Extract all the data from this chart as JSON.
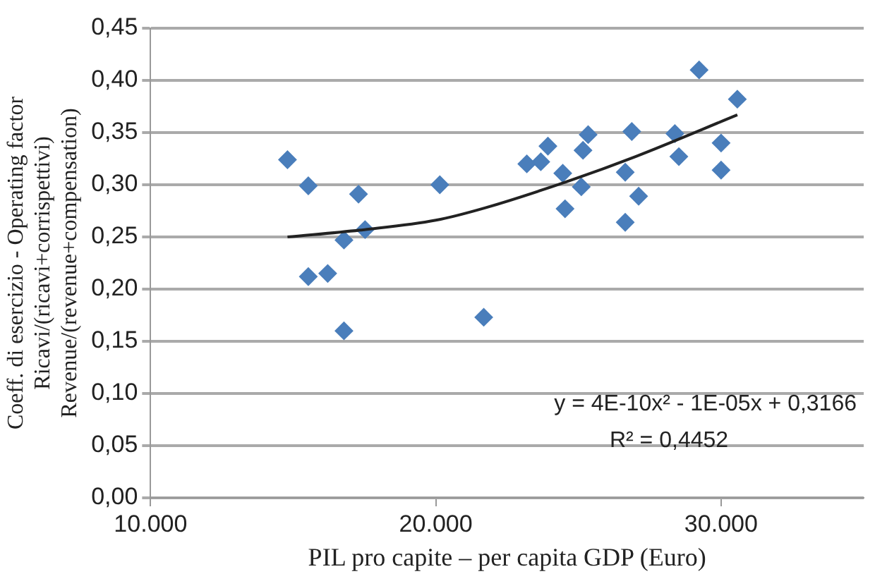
{
  "chart_data": {
    "type": "scatter",
    "xlabel": "PIL pro capite – per capita GDP (Euro)",
    "ylabel": "Coeff. di esercizio - Operating factor\nRicavi/(ricavi+corrispettivi)\nRevenue/(revenue+compensation)",
    "xlim": [
      10000,
      35000
    ],
    "xticks": [
      {
        "value": 10000,
        "label": "10.000"
      },
      {
        "value": 20000,
        "label": "20.000"
      },
      {
        "value": 30000,
        "label": "30.000"
      }
    ],
    "ylim": [
      0,
      0.45
    ],
    "yticks": [
      {
        "value": 0,
        "label": "0,00"
      },
      {
        "value": 0.05,
        "label": "0,05"
      },
      {
        "value": 0.1,
        "label": "0,10"
      },
      {
        "value": 0.15,
        "label": "0,15"
      },
      {
        "value": 0.2,
        "label": "0,20"
      },
      {
        "value": 0.25,
        "label": "0,25"
      },
      {
        "value": 0.3,
        "label": "0,30"
      },
      {
        "value": 0.35,
        "label": "0,35"
      },
      {
        "value": 0.4,
        "label": "0,40"
      },
      {
        "value": 0.45,
        "label": "0,45"
      }
    ],
    "grid": "y",
    "legend": false,
    "marker": "diamond",
    "annotations": [
      "y = 4E-10x² - 1E-05x + 0,3166",
      "R² = 0,4452"
    ],
    "series": [
      {
        "type": "scatter",
        "color": "#4a7ebb",
        "x": [
          14800,
          15530,
          15530,
          16210,
          16780,
          16780,
          17290,
          17520,
          20140,
          21680,
          23190,
          23680,
          23930,
          24450,
          24530,
          25100,
          25160,
          25340,
          26640,
          26640,
          26870,
          27110,
          28380,
          28520,
          29230,
          30000,
          30000,
          30570
        ],
        "values": [
          0.324,
          0.299,
          0.212,
          0.215,
          0.247,
          0.16,
          0.291,
          0.257,
          0.3,
          0.173,
          0.32,
          0.322,
          0.337,
          0.311,
          0.277,
          0.298,
          0.333,
          0.348,
          0.312,
          0.264,
          0.351,
          0.289,
          0.349,
          0.327,
          0.41,
          0.34,
          0.314,
          0.382
        ]
      },
      {
        "type": "line",
        "color": "#222222",
        "marker": "none",
        "x": [
          14800,
          17500,
          20000,
          21740,
          24590,
          27000,
          30570
        ],
        "values": [
          0.25,
          0.257,
          0.266,
          0.278,
          0.303,
          0.327,
          0.367
        ]
      }
    ]
  }
}
